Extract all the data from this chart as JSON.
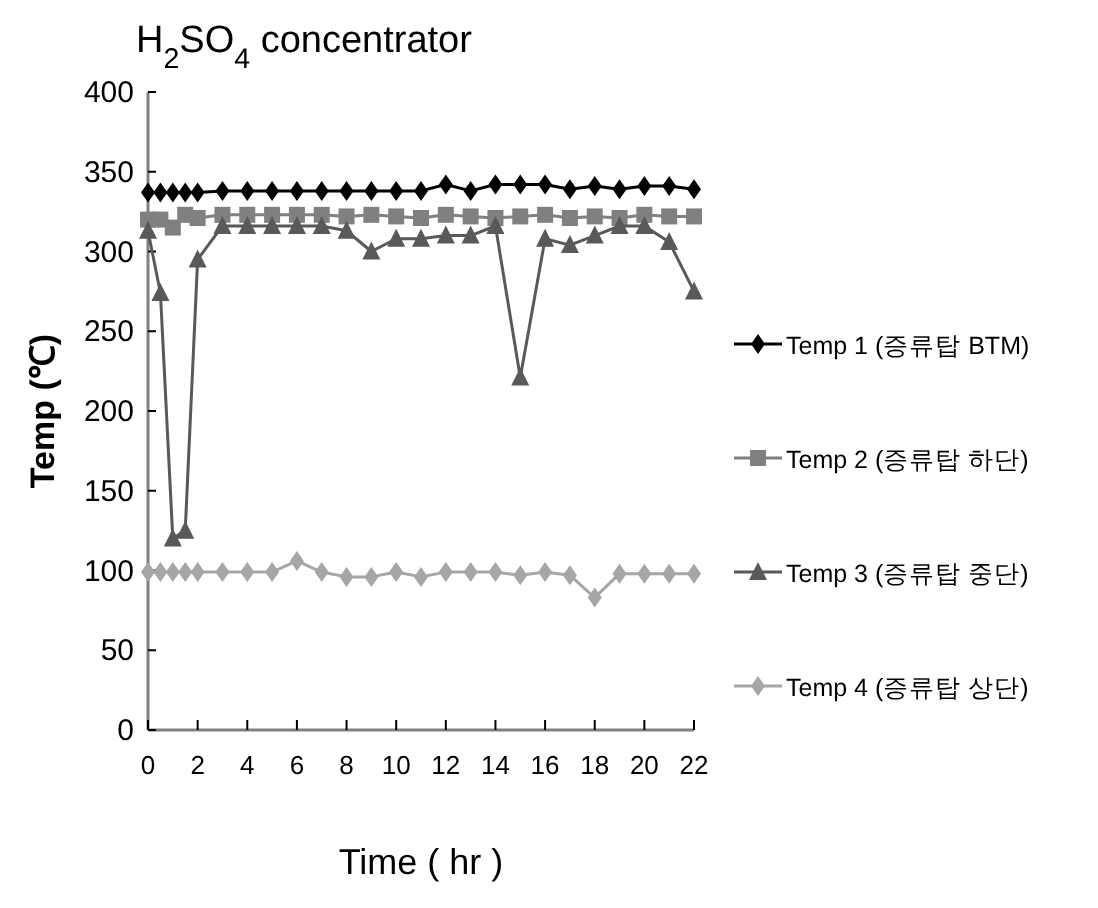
{
  "chart_data": {
    "type": "line",
    "title": "H$_{2}$SO$_{4}$ concentrator",
    "xlabel": "Time ( hr )",
    "ylabel": "Temp (℃)",
    "x": [
      0,
      0.5,
      1,
      1.5,
      2,
      3,
      4,
      5,
      6,
      7,
      8,
      9,
      10,
      11,
      12,
      13,
      14,
      15,
      16,
      17,
      18,
      19,
      20,
      21,
      22
    ],
    "xlim": [
      0,
      22
    ],
    "xticks": [
      0,
      2,
      4,
      6,
      8,
      10,
      12,
      14,
      16,
      18,
      20,
      22
    ],
    "ylim": [
      0,
      400
    ],
    "yticks": [
      0,
      50,
      100,
      150,
      200,
      250,
      300,
      350,
      400
    ],
    "grid": false,
    "legend": "right",
    "line_style": "solid",
    "series": [
      {
        "name": "Temp 1 (증류탑 BTM)",
        "color": "#000000",
        "marker": "diamond",
        "values": [
          337,
          337,
          337,
          337,
          337,
          338,
          338,
          338,
          338,
          338,
          338,
          338,
          338,
          338,
          342,
          338,
          342,
          342,
          342,
          339,
          341,
          339,
          341,
          341,
          339
        ]
      },
      {
        "name": "Temp 2 (증류탑 하단)",
        "color": "#808080",
        "marker": "square",
        "values": [
          320,
          320,
          315,
          323,
          321,
          323,
          323,
          323,
          323,
          323,
          322,
          323,
          322,
          321,
          323,
          322,
          321,
          322,
          323,
          321,
          322,
          321,
          323,
          322,
          322
        ]
      },
      {
        "name": "Temp 3 (증류탑 중단)",
        "color": "#595959",
        "marker": "triangle",
        "values": [
          313,
          274,
          120,
          125,
          295,
          316,
          316,
          316,
          316,
          316,
          313,
          300,
          308,
          308,
          310,
          310,
          316,
          221,
          308,
          304,
          310,
          316,
          316,
          306,
          275
        ]
      },
      {
        "name": "Temp 4 (증류탑 상단)",
        "color": "#a6a6a6",
        "marker": "diamond",
        "values": [
          99,
          99,
          99,
          99,
          99,
          99,
          99,
          99,
          106,
          99,
          96,
          96,
          99,
          96,
          99,
          99,
          99,
          97,
          99,
          97,
          83,
          98,
          98,
          98,
          98
        ]
      }
    ]
  }
}
